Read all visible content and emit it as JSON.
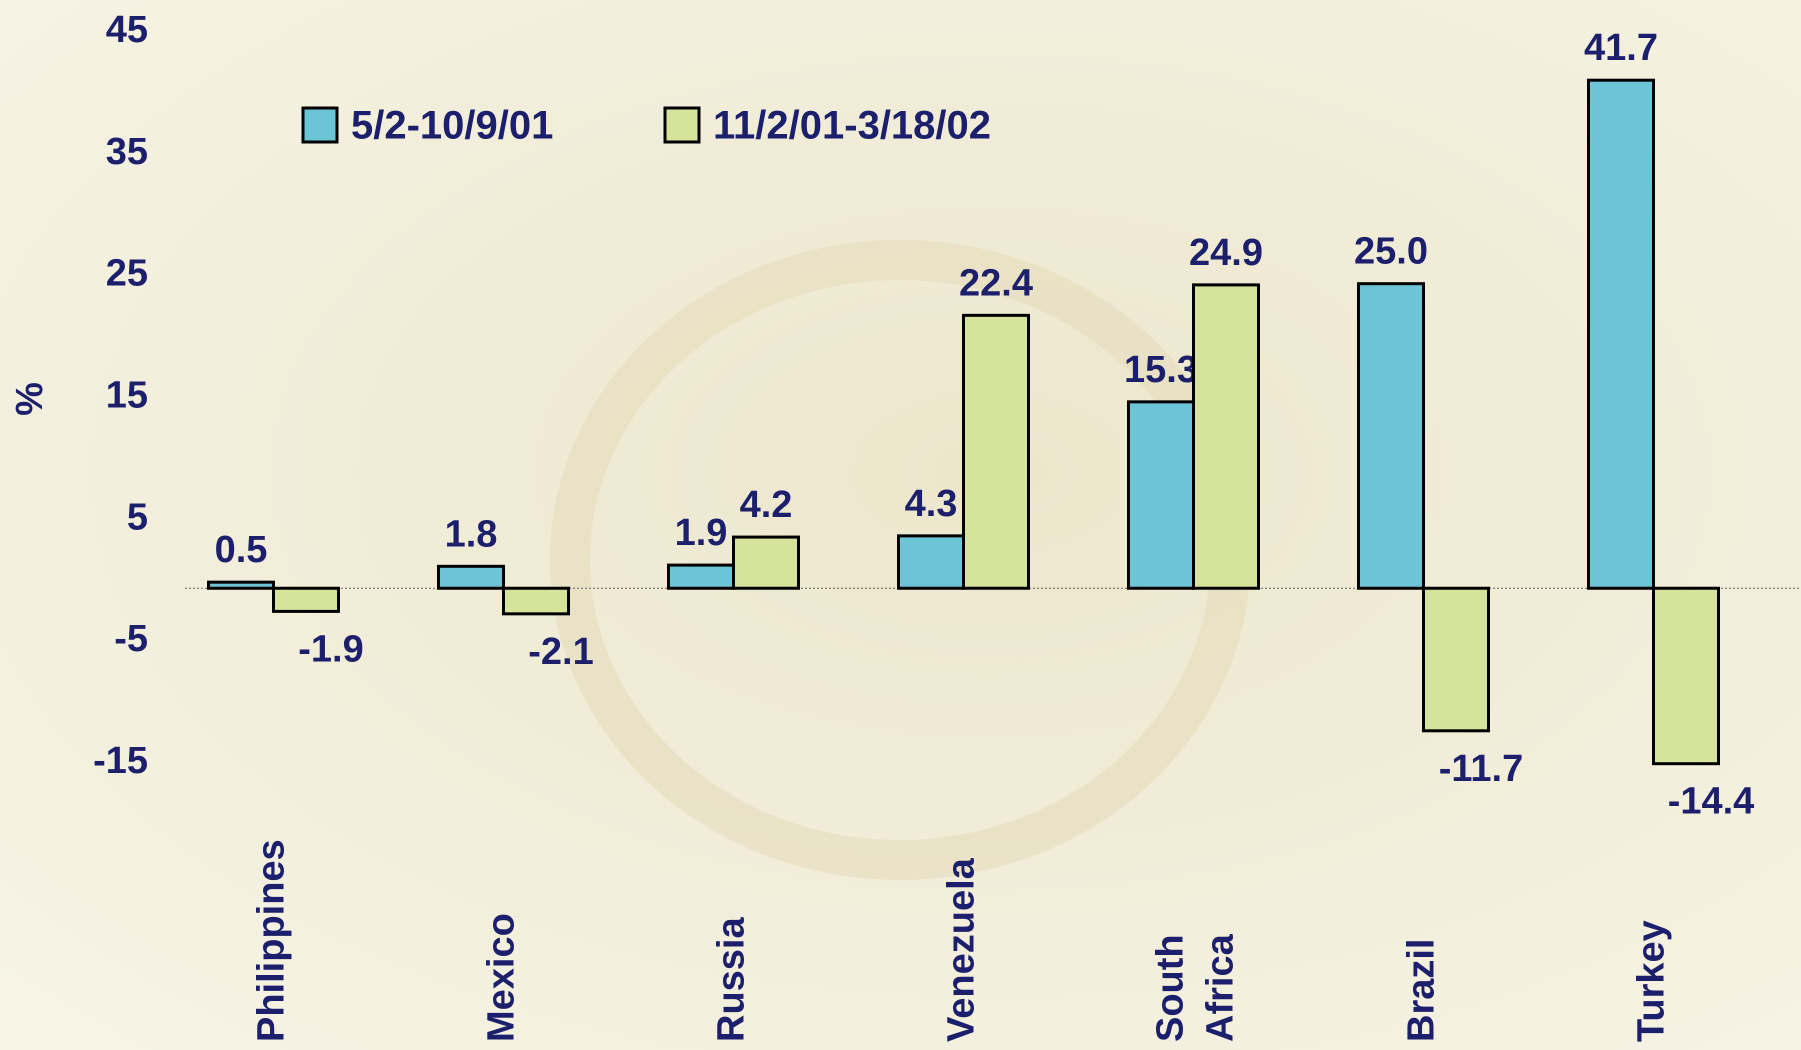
{
  "chart_data": {
    "type": "bar",
    "y_label": "%",
    "categories": [
      "Philippines",
      "Mexico",
      "Russia",
      "Venezuela",
      "South\nAfrica",
      "Brazil",
      "Turkey"
    ],
    "series": [
      {
        "name": "5/2-10/9/01",
        "color": "#6cc5d6",
        "values": [
          0.5,
          1.8,
          1.9,
          4.3,
          15.3,
          25.0,
          41.7
        ],
        "value_labels": [
          "0.5",
          "1.8",
          "1.9",
          "4.3",
          "15.3",
          "25.0",
          "41.7"
        ]
      },
      {
        "name": "11/2/01-3/18/02",
        "color": "#d5e39b",
        "values": [
          -1.9,
          -2.1,
          4.2,
          22.4,
          24.9,
          -11.7,
          -14.4
        ]
      }
    ],
    "ylim": [
      -15,
      45
    ],
    "yticks": [
      -15,
      -5,
      5,
      15,
      25,
      35,
      45
    ],
    "grid": false
  }
}
